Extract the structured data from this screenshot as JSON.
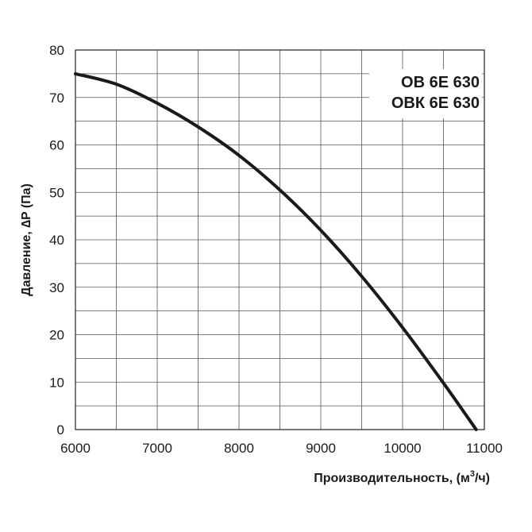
{
  "chart_data": {
    "type": "line",
    "title": "",
    "xlabel_main": "Производительность, (м",
    "xlabel_sup": "3",
    "xlabel_tail": "/ч)",
    "ylabel": "Давление, ∆P (Па)",
    "xlim": [
      6000,
      11000
    ],
    "ylim": [
      0,
      80
    ],
    "x_ticks": [
      "6000",
      "7000",
      "8000",
      "9000",
      "10000",
      "11000"
    ],
    "y_ticks": [
      "0",
      "10",
      "20",
      "30",
      "40",
      "50",
      "60",
      "70",
      "80"
    ],
    "grid": true,
    "minor_x_step": 500,
    "minor_y_step": 5,
    "legend_lines": [
      "ОВ 6Е 630",
      "ОВК 6Е 630"
    ],
    "legend_position": "top-right",
    "series": [
      {
        "x": [
          6000,
          6500,
          7000,
          7500,
          8000,
          8500,
          9000,
          9500,
          10000,
          10500,
          10900
        ],
        "y": [
          75,
          72.8,
          68.8,
          63.8,
          57.8,
          50.5,
          42,
          32.3,
          21.5,
          9.8,
          0
        ]
      }
    ]
  }
}
